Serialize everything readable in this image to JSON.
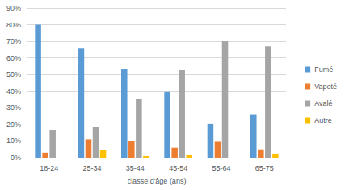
{
  "chart_data": {
    "type": "bar",
    "categories": [
      "18-24",
      "25-34",
      "35-44",
      "45-54",
      "55-64",
      "65-75"
    ],
    "series": [
      {
        "name": "Fumé",
        "color": "#5b9bd5",
        "values": [
          80,
          66,
          53.5,
          39.5,
          20.5,
          26
        ]
      },
      {
        "name": "Vapoté",
        "color": "#ed7d31",
        "values": [
          3,
          11,
          10,
          6,
          9.5,
          5
        ]
      },
      {
        "name": "Avalé",
        "color": "#a5a5a5",
        "values": [
          16.5,
          18.5,
          35.5,
          53,
          70,
          67
        ]
      },
      {
        "name": "Autre",
        "color": "#ffc000",
        "values": [
          0,
          4.5,
          1,
          1.5,
          0,
          2.5
        ]
      }
    ],
    "x_label": "classe d'âge (ans)",
    "ylim": [
      0,
      90
    ],
    "yticks": [
      {
        "value": 0,
        "label": "0%"
      },
      {
        "value": 10,
        "label": "10%"
      },
      {
        "value": 20,
        "label": "20%"
      },
      {
        "value": 30,
        "label": "30%"
      },
      {
        "value": 40,
        "label": "40%"
      },
      {
        "value": 50,
        "label": "50%"
      },
      {
        "value": 60,
        "label": "60%"
      },
      {
        "value": 70,
        "label": "70%"
      },
      {
        "value": 80,
        "label": "80%"
      },
      {
        "value": 90,
        "label": "90%"
      }
    ],
    "grid": true,
    "legend": "right"
  }
}
